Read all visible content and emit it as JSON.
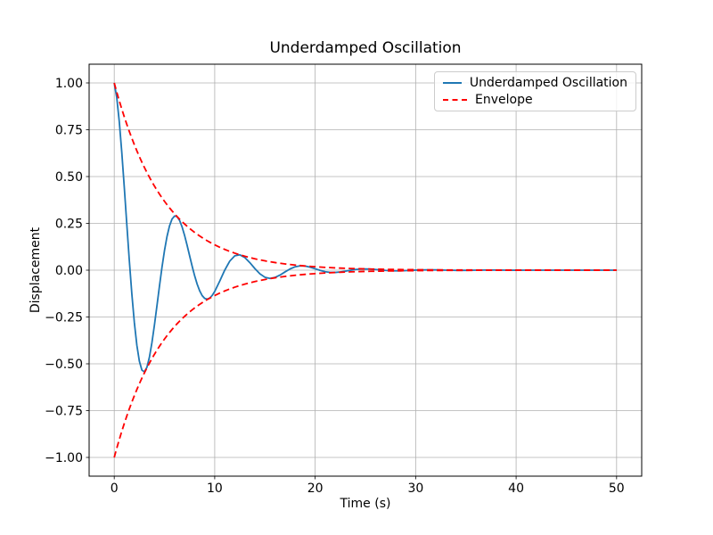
{
  "figure": {
    "background": "#ffffff"
  },
  "chart_data": {
    "type": "line",
    "title": "Underdamped Oscillation",
    "xlabel": "Time (s)",
    "ylabel": "Displacement",
    "xlim": [
      -2.5,
      52.5
    ],
    "ylim": [
      -1.1,
      1.1
    ],
    "grid": true,
    "grid_color": "#b0b0b0",
    "axis_color": "#000000",
    "xticks": {
      "values": [
        0,
        10,
        20,
        30,
        40,
        50
      ],
      "labels": [
        "0",
        "10",
        "20",
        "30",
        "40",
        "50"
      ]
    },
    "yticks": {
      "values": [
        -1.0,
        -0.75,
        -0.5,
        -0.25,
        0.0,
        0.25,
        0.5,
        0.75,
        1.0
      ],
      "labels": [
        "−1.00",
        "−0.75",
        "−0.50",
        "−0.25",
        "0.00",
        "0.25",
        "0.50",
        "0.75",
        "1.00"
      ]
    },
    "legend": {
      "position": "upper right",
      "entries": [
        {
          "label": "Underdamped Oscillation",
          "color": "#1f77b4",
          "dash": "solid"
        },
        {
          "label": "Envelope",
          "color": "#ff0000",
          "dash": "dashed"
        }
      ]
    },
    "x": [
      0,
      0.25,
      0.5,
      0.75,
      1,
      1.25,
      1.5,
      1.75,
      2,
      2.25,
      2.5,
      2.75,
      3,
      3.25,
      3.5,
      3.75,
      4,
      4.25,
      4.5,
      4.75,
      5,
      5.25,
      5.5,
      5.75,
      6,
      6.25,
      6.5,
      6.75,
      7,
      7.25,
      7.5,
      7.75,
      8,
      8.25,
      8.5,
      8.75,
      9,
      9.25,
      9.5,
      9.75,
      10,
      10.5,
      11,
      11.5,
      12,
      12.5,
      13,
      13.5,
      14,
      14.5,
      15,
      15.5,
      16,
      16.5,
      17,
      17.5,
      18,
      18.5,
      19,
      19.5,
      20,
      20.5,
      21,
      21.5,
      22,
      22.5,
      23,
      23.5,
      24,
      24.5,
      25,
      25.5,
      26,
      26.5,
      27,
      27.5,
      28,
      28.5,
      29,
      29.5,
      30,
      31,
      32,
      33,
      34,
      35,
      36,
      37,
      38,
      39,
      40,
      41,
      42,
      43,
      44,
      45,
      46,
      47,
      48,
      49,
      50
    ],
    "series": [
      {
        "id": "underdamped-oscillation",
        "name": "Underdamped Oscillation",
        "color": "#1f77b4",
        "style": "solid",
        "width": 1.8,
        "in_legend": true,
        "y": [
          1.0,
          0.9217,
          0.7941,
          0.6298,
          0.4424,
          0.2456,
          0.0524,
          -0.1256,
          -0.279,
          -0.4005,
          -0.4859,
          -0.5333,
          -0.5433,
          -0.519,
          -0.465,
          -0.3876,
          -0.2937,
          -0.1907,
          -0.0857,
          0.0146,
          0.1044,
          0.1792,
          0.2359,
          0.2727,
          0.2892,
          0.2863,
          0.2662,
          0.2314,
          0.1859,
          0.1332,
          0.0773,
          0.022,
          -0.0294,
          -0.0741,
          -0.11,
          -0.1357,
          -0.1506,
          -0.1548,
          -0.1491,
          -0.1348,
          -0.1136,
          -0.0582,
          0.0005,
          0.0485,
          0.0766,
          0.0819,
          0.0674,
          0.04,
          0.0083,
          -0.0195,
          -0.0378,
          -0.044,
          -0.039,
          -0.026,
          -0.0092,
          0.0066,
          0.018,
          0.0232,
          0.0221,
          0.0162,
          0.0075,
          -0.0013,
          -0.0082,
          -0.012,
          -0.0123,
          -0.0097,
          -0.0054,
          -0.0006,
          0.0035,
          0.006,
          0.0067,
          0.0057,
          0.0036,
          0.001,
          -0.0013,
          -0.0029,
          -0.0036,
          -0.0033,
          -0.0023,
          -0.0009,
          0.0004,
          0.0019,
          0.0014,
          0.0,
          -0.0009,
          -0.0008,
          -0.0001,
          0.0005,
          0.0005,
          0.0001,
          -0.0002,
          0,
          0,
          0,
          0,
          0,
          0,
          0,
          0,
          0,
          0
        ]
      },
      {
        "id": "envelope-upper",
        "name": "Envelope",
        "color": "#ff0000",
        "style": "dashed",
        "width": 1.8,
        "in_legend": true,
        "y": [
          1.0,
          0.9512,
          0.9048,
          0.8607,
          0.8187,
          0.7788,
          0.7408,
          0.7047,
          0.6703,
          0.6376,
          0.6065,
          0.5769,
          0.5488,
          0.522,
          0.4966,
          0.4724,
          0.4493,
          0.4274,
          0.4066,
          0.3867,
          0.3679,
          0.3499,
          0.3329,
          0.3166,
          0.3012,
          0.2865,
          0.2725,
          0.2592,
          0.2466,
          0.2346,
          0.2231,
          0.2122,
          0.2019,
          0.1921,
          0.1827,
          0.1738,
          0.1653,
          0.1572,
          0.1496,
          0.1423,
          0.1353,
          0.1225,
          0.1108,
          0.1003,
          0.0907,
          0.0821,
          0.0743,
          0.0672,
          0.0608,
          0.055,
          0.0498,
          0.045,
          0.0408,
          0.0369,
          0.0334,
          0.0302,
          0.0273,
          0.0247,
          0.0224,
          0.0202,
          0.0183,
          0.0166,
          0.015,
          0.0136,
          0.0123,
          0.0111,
          0.0101,
          0.0091,
          0.0082,
          0.0074,
          0.0067,
          0.0061,
          0.0055,
          0.005,
          0.0045,
          0.0041,
          0.0037,
          0.0033,
          0.003,
          0.0027,
          0.0025,
          0.002,
          0.0017,
          0.0014,
          0.0011,
          0.0009,
          0.0007,
          0.0006,
          0.0005,
          0.0004,
          0.0003,
          0.0003,
          0.0002,
          0.0002,
          0.0002,
          0.0001,
          0.0001,
          0.0001,
          0.0001,
          0.0001,
          0.0
        ]
      },
      {
        "id": "envelope-lower",
        "name": "Envelope (lower mirror)",
        "color": "#ff0000",
        "style": "dashed",
        "width": 1.8,
        "in_legend": false,
        "y": [
          -1.0,
          -0.9512,
          -0.9048,
          -0.8607,
          -0.8187,
          -0.7788,
          -0.7408,
          -0.7047,
          -0.6703,
          -0.6376,
          -0.6065,
          -0.5769,
          -0.5488,
          -0.522,
          -0.4966,
          -0.4724,
          -0.4493,
          -0.4274,
          -0.4066,
          -0.3867,
          -0.3679,
          -0.3499,
          -0.3329,
          -0.3166,
          -0.3012,
          -0.2865,
          -0.2725,
          -0.2592,
          -0.2466,
          -0.2346,
          -0.2231,
          -0.2122,
          -0.2019,
          -0.1921,
          -0.1827,
          -0.1738,
          -0.1653,
          -0.1572,
          -0.1496,
          -0.1423,
          -0.1353,
          -0.1225,
          -0.1108,
          -0.1003,
          -0.0907,
          -0.0821,
          -0.0743,
          -0.0672,
          -0.0608,
          -0.055,
          -0.0498,
          -0.045,
          -0.0408,
          -0.0369,
          -0.0334,
          -0.0302,
          -0.0273,
          -0.0247,
          -0.0224,
          -0.0202,
          -0.0183,
          -0.0166,
          -0.015,
          -0.0136,
          -0.0123,
          -0.0111,
          -0.0101,
          -0.0091,
          -0.0082,
          -0.0074,
          -0.0067,
          -0.0061,
          -0.0055,
          -0.005,
          -0.0045,
          -0.0041,
          -0.0037,
          -0.0033,
          -0.003,
          -0.0027,
          -0.0025,
          -0.002,
          -0.0017,
          -0.0014,
          -0.0011,
          -0.0009,
          -0.0007,
          -0.0006,
          -0.0005,
          -0.0004,
          -0.0003,
          -0.0003,
          -0.0002,
          -0.0002,
          -0.0002,
          -0.0001,
          -0.0001,
          -0.0001,
          -0.0001,
          -0.0001,
          0.0
        ]
      }
    ]
  }
}
